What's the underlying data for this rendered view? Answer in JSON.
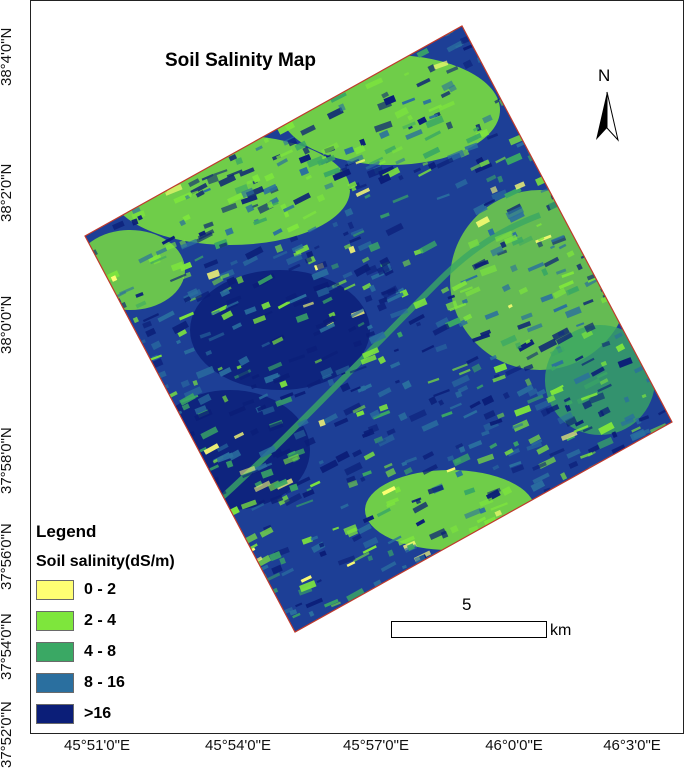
{
  "title": "Soil Salinity Map",
  "north_label": "N",
  "lat_labels": [
    "38°4'0\"N",
    "38°2'0\"N",
    "38°0'0\"N",
    "37°58'0\"N",
    "37°56'0\"N",
    "37°54'0\"N",
    "37°52'0\"N"
  ],
  "lon_labels": [
    "45°51'0\"E",
    "45°54'0\"E",
    "45°57'0\"E",
    "46°0'0\"E",
    "46°3'0\"E"
  ],
  "legend": {
    "title": "Legend",
    "subtitle": "Soil salinity(dS/m)",
    "classes": [
      {
        "label": "0 - 2",
        "color": "#ffff73"
      },
      {
        "label": "2 - 4",
        "color": "#7ee63c"
      },
      {
        "label": "4 - 8",
        "color": "#3aa864"
      },
      {
        "label": "8 - 16",
        "color": "#2a6f9f"
      },
      {
        "label": ">16",
        "color": "#0b1e78"
      }
    ]
  },
  "scale_bar": {
    "value": "5",
    "unit": "km"
  },
  "colors": {
    "boundary": "#c0392b"
  }
}
